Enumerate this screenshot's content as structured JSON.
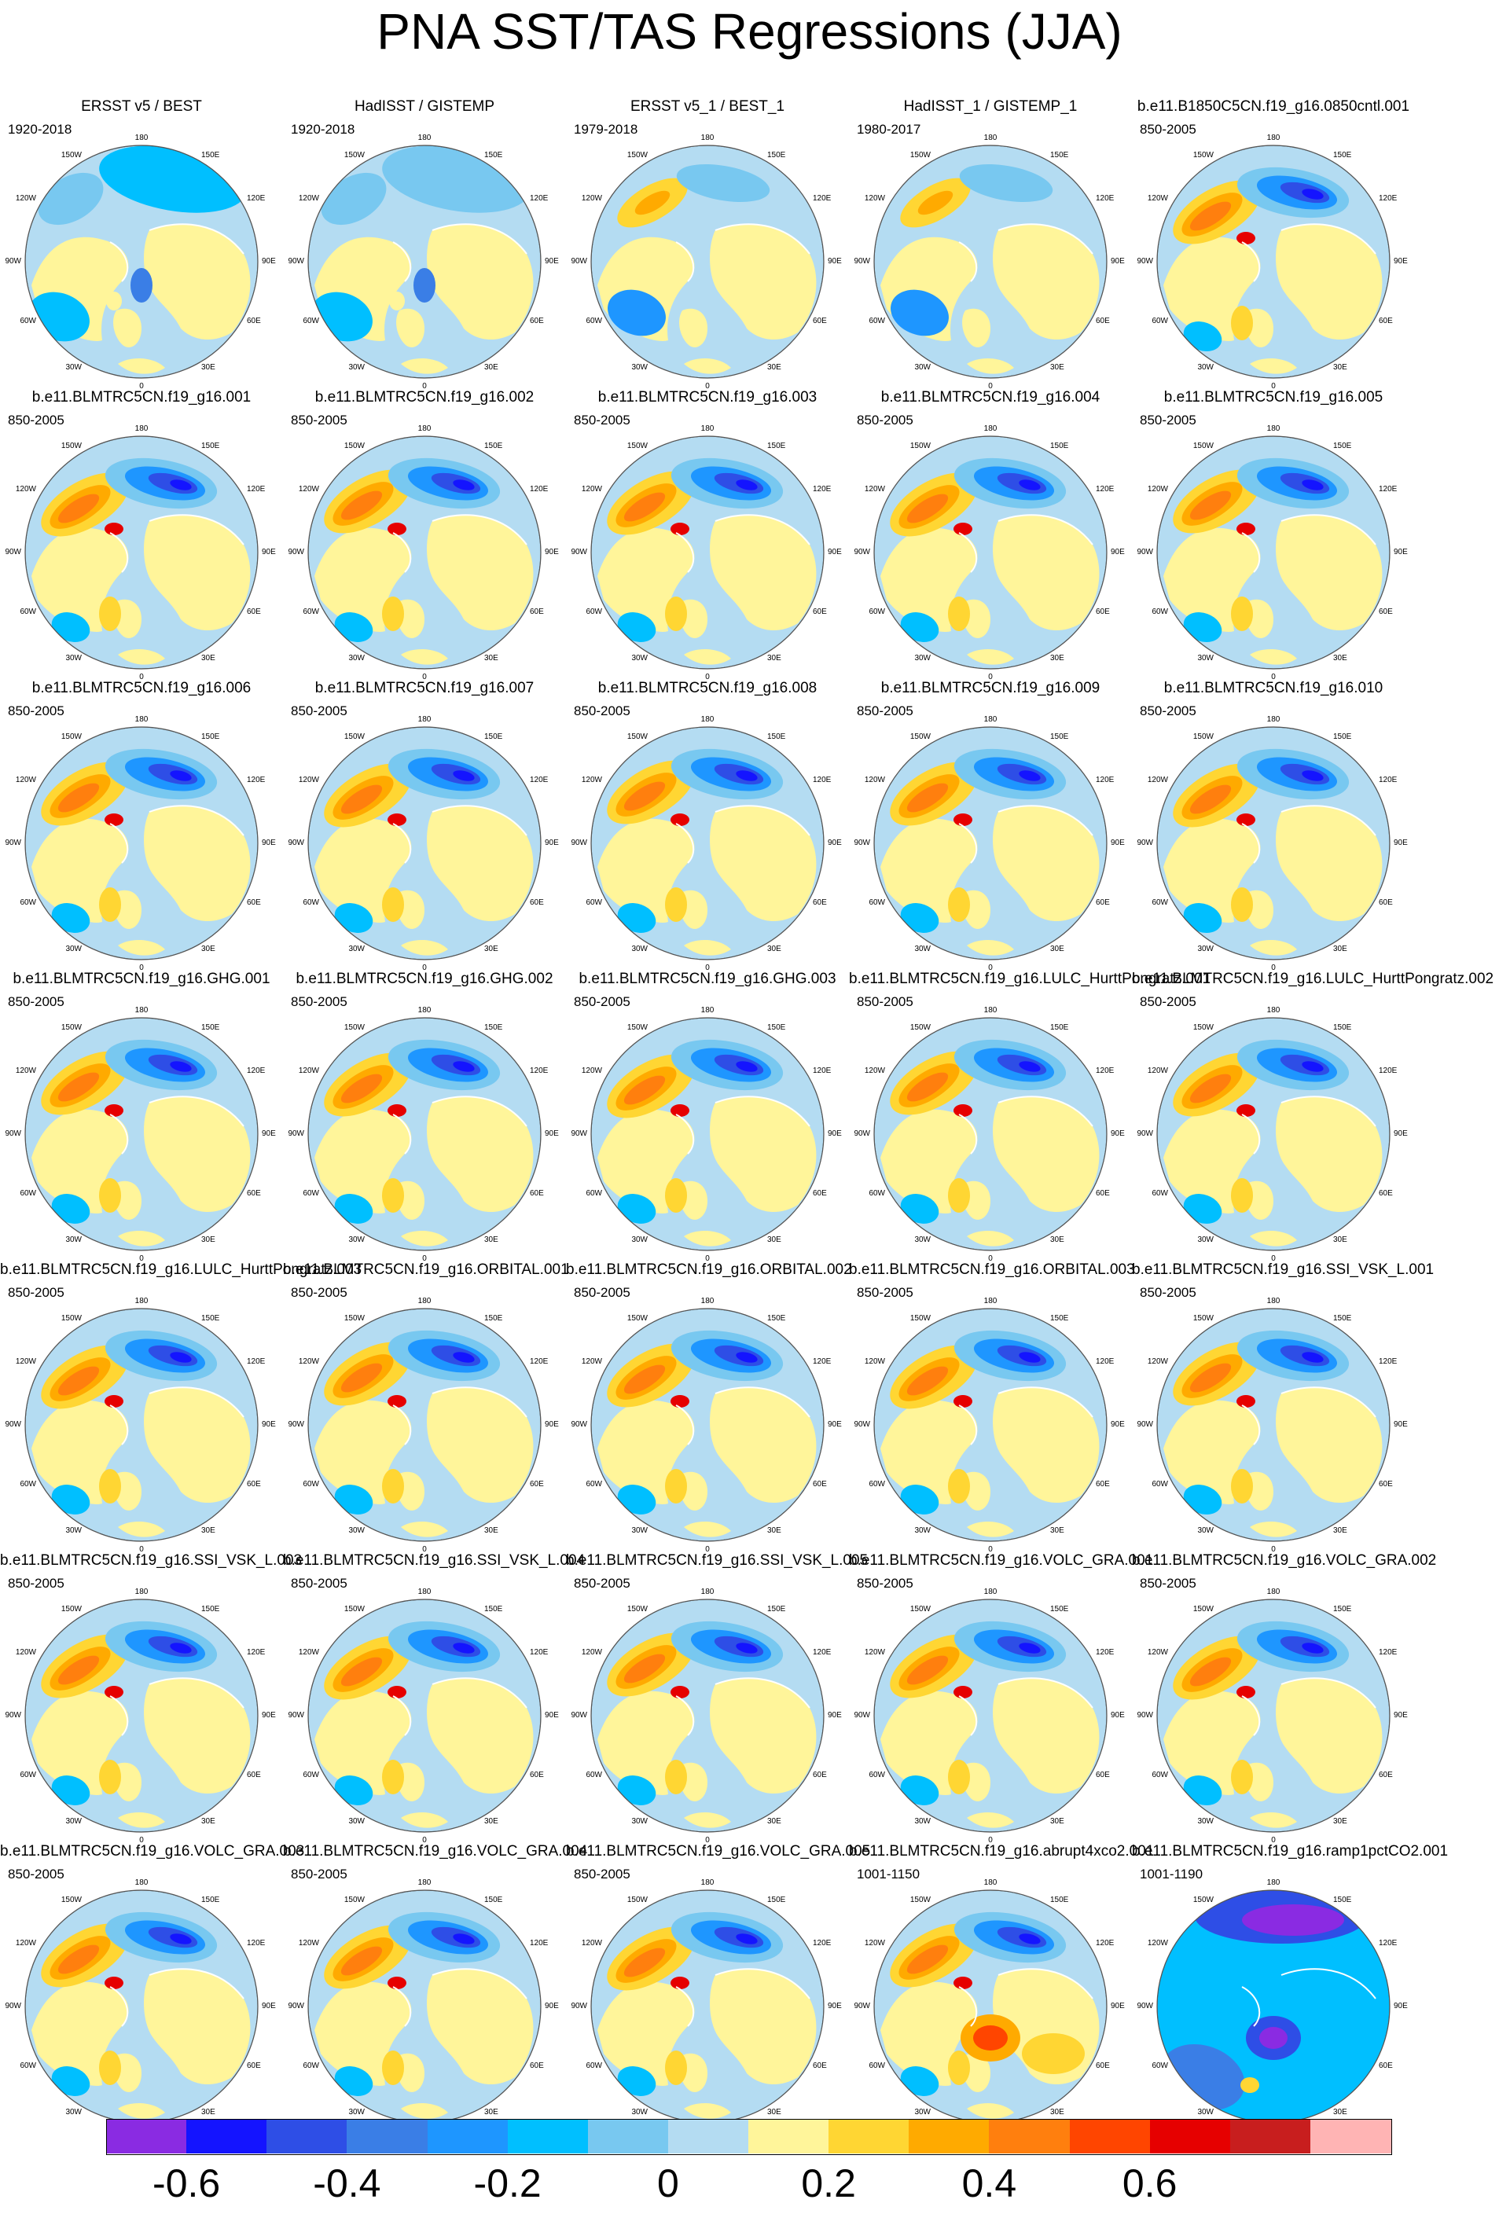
{
  "title": "PNA SST/TAS Regressions (JJA)",
  "colors": {
    "ocean_base": "#b4dcf2",
    "land_base": "#fff59a",
    "coast": "#ffffff",
    "outline": "#555555"
  },
  "panels": [
    {
      "title": "ERSST v5 / BEST",
      "years": "1920-2018",
      "pattern": "obs_ersst"
    },
    {
      "title": "HadISST / GISTEMP",
      "years": "1920-2018",
      "pattern": "obs_hadisst"
    },
    {
      "title": "ERSST v5_1 / BEST_1",
      "years": "1979-2018",
      "pattern": "obs_recent"
    },
    {
      "title": "HadISST_1 / GISTEMP_1",
      "years": "1980-2017",
      "pattern": "obs_recent"
    },
    {
      "title": "b.e11.B1850C5CN.f19_g16.0850cntl.001",
      "years": "850-2005",
      "pattern": "model"
    },
    {
      "title": "b.e11.BLMTRC5CN.f19_g16.001",
      "years": "850-2005",
      "pattern": "model"
    },
    {
      "title": "b.e11.BLMTRC5CN.f19_g16.002",
      "years": "850-2005",
      "pattern": "model"
    },
    {
      "title": "b.e11.BLMTRC5CN.f19_g16.003",
      "years": "850-2005",
      "pattern": "model"
    },
    {
      "title": "b.e11.BLMTRC5CN.f19_g16.004",
      "years": "850-2005",
      "pattern": "model"
    },
    {
      "title": "b.e11.BLMTRC5CN.f19_g16.005",
      "years": "850-2005",
      "pattern": "model"
    },
    {
      "title": "b.e11.BLMTRC5CN.f19_g16.006",
      "years": "850-2005",
      "pattern": "model"
    },
    {
      "title": "b.e11.BLMTRC5CN.f19_g16.007",
      "years": "850-2005",
      "pattern": "model"
    },
    {
      "title": "b.e11.BLMTRC5CN.f19_g16.008",
      "years": "850-2005",
      "pattern": "model"
    },
    {
      "title": "b.e11.BLMTRC5CN.f19_g16.009",
      "years": "850-2005",
      "pattern": "model"
    },
    {
      "title": "b.e11.BLMTRC5CN.f19_g16.010",
      "years": "850-2005",
      "pattern": "model"
    },
    {
      "title": "b.e11.BLMTRC5CN.f19_g16.GHG.001",
      "years": "850-2005",
      "pattern": "model"
    },
    {
      "title": "b.e11.BLMTRC5CN.f19_g16.GHG.002",
      "years": "850-2005",
      "pattern": "model"
    },
    {
      "title": "b.e11.BLMTRC5CN.f19_g16.GHG.003",
      "years": "850-2005",
      "pattern": "model"
    },
    {
      "title": "b.e11.BLMTRC5CN.f19_g16.LULC_HurttPongratz.001",
      "years": "850-2005",
      "pattern": "model"
    },
    {
      "title": "b.e11.BLMTRC5CN.f19_g16.LULC_HurttPongratz.002",
      "years": "850-2005",
      "pattern": "model"
    },
    {
      "title": "b.e11.BLMTRC5CN.f19_g16.LULC_HurttPongratz.003",
      "years": "850-2005",
      "pattern": "model"
    },
    {
      "title": "b.e11.BLMTRC5CN.f19_g16.ORBITAL.001",
      "years": "850-2005",
      "pattern": "model"
    },
    {
      "title": "b.e11.BLMTRC5CN.f19_g16.ORBITAL.002",
      "years": "850-2005",
      "pattern": "model"
    },
    {
      "title": "b.e11.BLMTRC5CN.f19_g16.ORBITAL.003",
      "years": "850-2005",
      "pattern": "model"
    },
    {
      "title": "b.e11.BLMTRC5CN.f19_g16.SSI_VSK_L.001",
      "years": "850-2005",
      "pattern": "model"
    },
    {
      "title": "b.e11.BLMTRC5CN.f19_g16.SSI_VSK_L.003",
      "years": "850-2005",
      "pattern": "model"
    },
    {
      "title": "b.e11.BLMTRC5CN.f19_g16.SSI_VSK_L.004",
      "years": "850-2005",
      "pattern": "model"
    },
    {
      "title": "b.e11.BLMTRC5CN.f19_g16.SSI_VSK_L.005",
      "years": "850-2005",
      "pattern": "model"
    },
    {
      "title": "b.e11.BLMTRC5CN.f19_g16.VOLC_GRA.001",
      "years": "850-2005",
      "pattern": "model"
    },
    {
      "title": "b.e11.BLMTRC5CN.f19_g16.VOLC_GRA.002",
      "years": "850-2005",
      "pattern": "model"
    },
    {
      "title": "b.e11.BLMTRC5CN.f19_g16.VOLC_GRA.003",
      "years": "850-2005",
      "pattern": "model"
    },
    {
      "title": "b.e11.BLMTRC5CN.f19_g16.VOLC_GRA.004",
      "years": "850-2005",
      "pattern": "model"
    },
    {
      "title": "b.e11.BLMTRC5CN.f19_g16.VOLC_GRA.005",
      "years": "850-2005",
      "pattern": "model"
    },
    {
      "title": "b.e11.BLMTRC5CN.f19_g16.abrupt4xco2.001",
      "years": "1001-1150",
      "pattern": "abrupt4x"
    },
    {
      "title": "b.e11.BLMTRC5CN.f19_g16.ramp1pctCO2.001",
      "years": "1001-1190",
      "pattern": "ramp1pct"
    }
  ],
  "map_labels": {
    "top": "180",
    "top_right": "150E",
    "top_left": "150W",
    "upper_right": "120E",
    "upper_left": "120W",
    "right": "90E",
    "left": "90W",
    "lower_right": "60E",
    "lower_left": "60W",
    "bottom_right": "30E",
    "bottom_left": "30W",
    "bottom": "0"
  },
  "colorbar": {
    "colors": [
      "#8a2be2",
      "#1414ff",
      "#2e4ee6",
      "#3a7ee6",
      "#1e96ff",
      "#00bfff",
      "#78c8f0",
      "#b4dcf2",
      "#fff59a",
      "#ffd633",
      "#ffaa00",
      "#ff7f0e",
      "#ff4500",
      "#e60000",
      "#c81e1e",
      "#ffb4b4"
    ],
    "ticks": [
      "-0.6",
      "-0.4",
      "-0.2",
      "0",
      "0.2",
      "0.4",
      "0.6"
    ]
  }
}
